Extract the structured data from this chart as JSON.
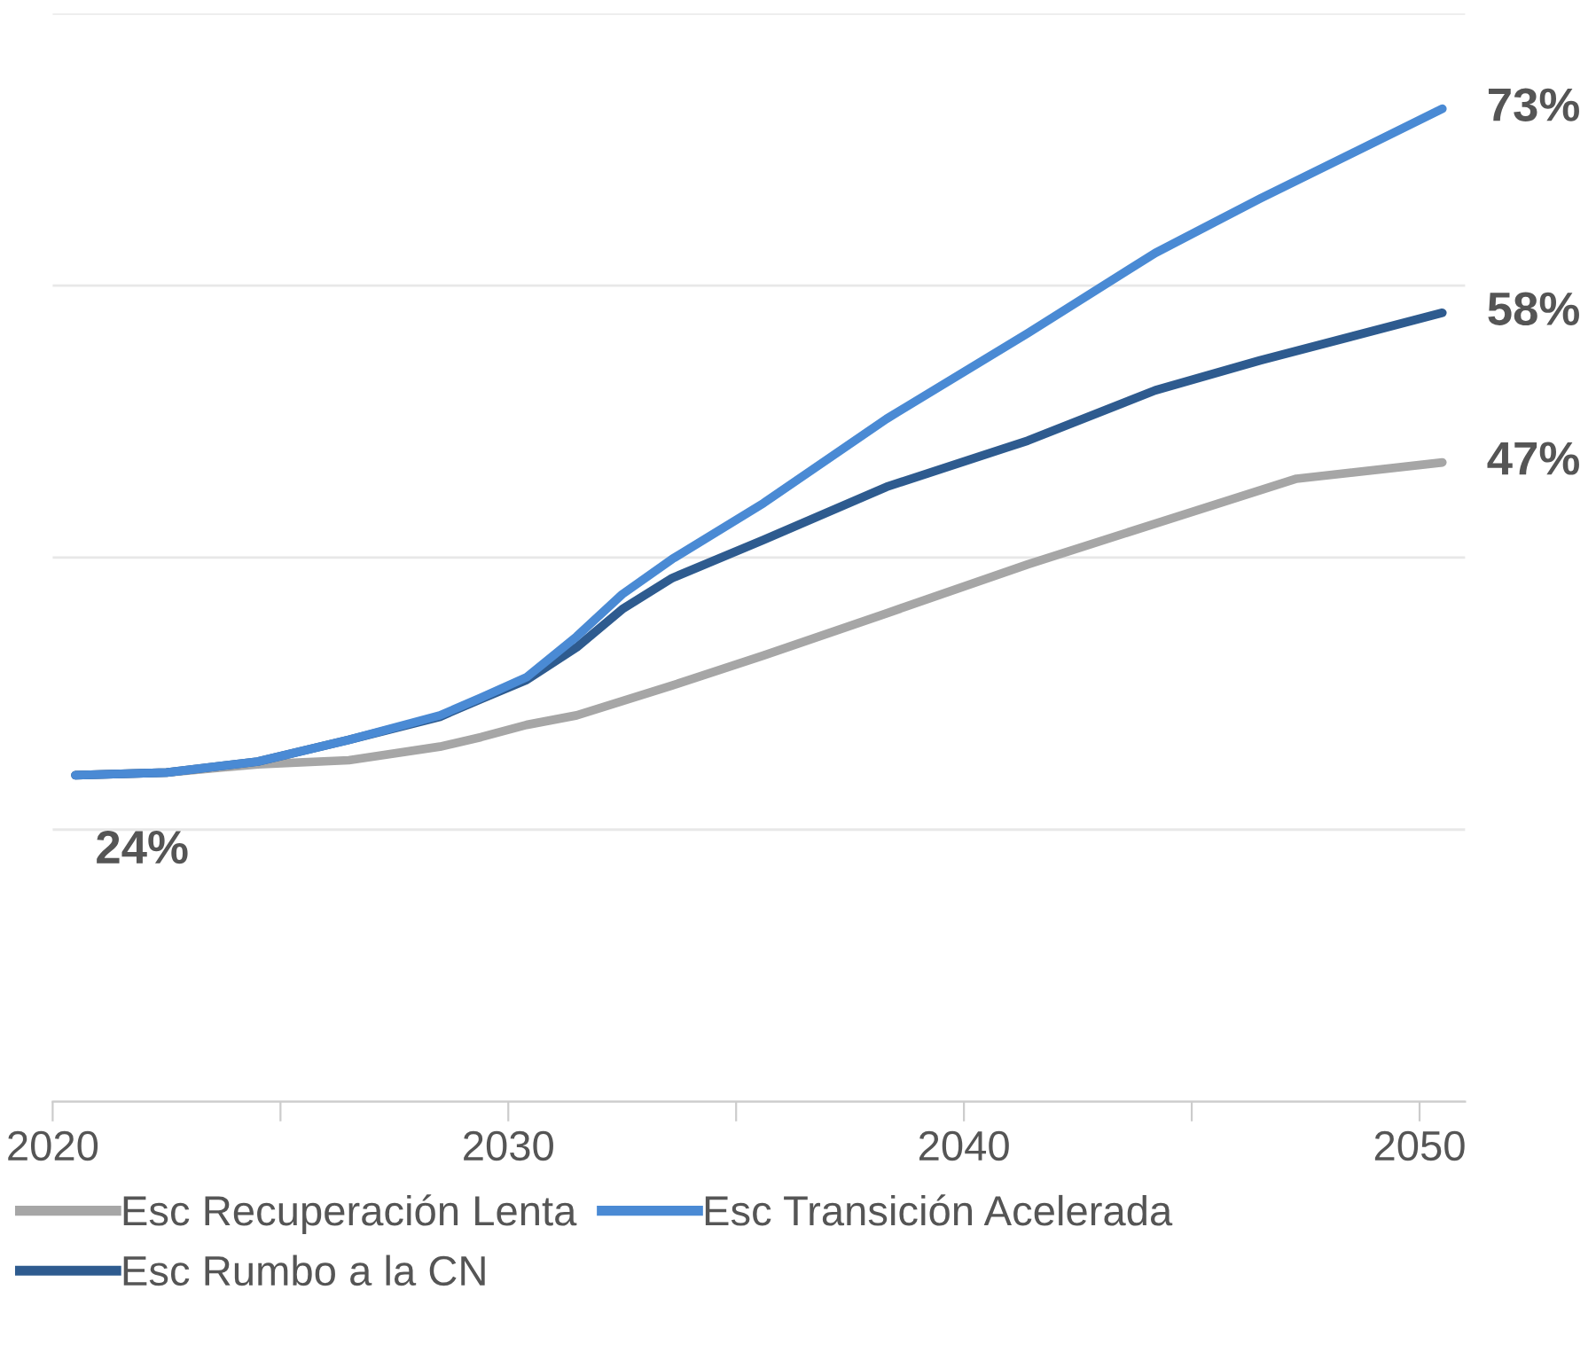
{
  "chart_data": {
    "type": "line",
    "xlim": [
      2020,
      2051
    ],
    "xticks": [
      2020,
      {
        "value": 2025,
        "label": null
      },
      2030,
      {
        "value": 2035,
        "label": null
      },
      2040,
      {
        "value": 2045,
        "label": null
      },
      2050
    ],
    "ylim": [
      0,
      80
    ],
    "yticks": [
      {
        "value": 0,
        "label": null
      },
      {
        "value": 20,
        "label": null
      },
      {
        "value": 40,
        "label": null
      },
      {
        "value": 60,
        "label": null
      },
      {
        "value": 80,
        "label": null
      }
    ],
    "grid": "y",
    "legend": "bottom",
    "tick_labels": "x",
    "marker": "none",
    "line_style": "solid",
    "series": [
      {
        "name": "Esc Recuperación Lenta",
        "color": "#a6a6a6",
        "x": [
          2020.5,
          2022.5,
          2024.5,
          2026.5,
          2028.5,
          2029.4,
          2030.4,
          2031.5,
          2033.6,
          2035.6,
          2038.3,
          2041.4,
          2044.2,
          2047.3,
          2050.5
        ],
        "values": [
          24,
          24.2,
          24.8,
          25.1,
          26.1,
          26.8,
          27.7,
          28.4,
          30.6,
          32.8,
          35.9,
          39.5,
          42.5,
          45.8,
          47
        ],
        "value_labels": [
          "24%",
          null,
          null,
          null,
          null,
          null,
          null,
          null,
          null,
          null,
          null,
          null,
          null,
          null,
          "47%"
        ]
      },
      {
        "name": "Esc Rumbo a la CN",
        "color": "#2e5b8f",
        "x": [
          2020.5,
          2022.5,
          2024.5,
          2026.5,
          2028.5,
          2029.4,
          2030.4,
          2031.5,
          2032.5,
          2033.6,
          2035.6,
          2038.3,
          2041.4,
          2044.2,
          2046.5,
          2050.5
        ],
        "values": [
          24,
          24.2,
          25,
          26.6,
          28.3,
          29.6,
          31,
          33.4,
          36.2,
          38.5,
          41.3,
          45.2,
          48.6,
          52.3,
          54.5,
          58
        ],
        "value_labels": [
          null,
          null,
          null,
          null,
          null,
          null,
          null,
          null,
          null,
          null,
          null,
          null,
          null,
          null,
          null,
          "58%"
        ]
      },
      {
        "name": "Esc Transición Acelerada",
        "color": "#4a8ad4",
        "x": [
          2020.5,
          2022.5,
          2024.5,
          2026.5,
          2028.5,
          2029.4,
          2030.4,
          2031.5,
          2032.5,
          2033.6,
          2035.6,
          2038.3,
          2041.4,
          2044.2,
          2046.5,
          2050.5
        ],
        "values": [
          24,
          24.2,
          25,
          26.6,
          28.4,
          29.7,
          31.2,
          34.2,
          37.3,
          39.9,
          44,
          50.2,
          56.5,
          62.4,
          66.4,
          73
        ],
        "value_labels": [
          null,
          null,
          null,
          null,
          null,
          null,
          null,
          null,
          null,
          null,
          null,
          null,
          null,
          null,
          null,
          "73%"
        ]
      }
    ]
  }
}
